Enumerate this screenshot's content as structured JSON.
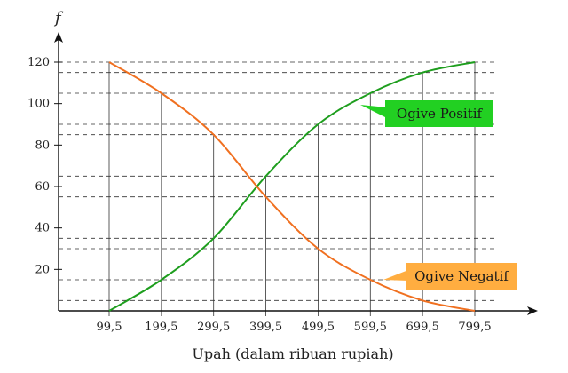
{
  "chart_data": {
    "type": "line",
    "x_axis_label": "Upah (dalam ribuan rupiah)",
    "y_axis_label": "f",
    "x_ticks": [
      "99,5",
      "199,5",
      "299,5",
      "399,5",
      "499,5",
      "599,5",
      "699,5",
      "799,5"
    ],
    "x_values": [
      99.5,
      199.5,
      299.5,
      399.5,
      499.5,
      599.5,
      699.5,
      799.5
    ],
    "y_ticks": [
      20,
      40,
      60,
      80,
      100,
      120
    ],
    "xlim": [
      0,
      920
    ],
    "ylim": [
      0,
      132
    ],
    "grid": "dashed horizontal guides at data values, solid verticals at x ticks",
    "series": [
      {
        "name": "Ogive Positif",
        "color": "#1e9e1e",
        "values": [
          0,
          15,
          35,
          65,
          90,
          105,
          115,
          120
        ]
      },
      {
        "name": "Ogive Negatif",
        "color": "#f07020",
        "values": [
          120,
          105,
          85,
          55,
          30,
          15,
          5,
          0
        ]
      }
    ],
    "legend": [
      {
        "label": "Ogive Positif",
        "box_color": "#22d022",
        "placement": "right, upper"
      },
      {
        "label": "Ogive Negatif",
        "box_color": "#ffad40",
        "placement": "right, lower"
      }
    ]
  }
}
